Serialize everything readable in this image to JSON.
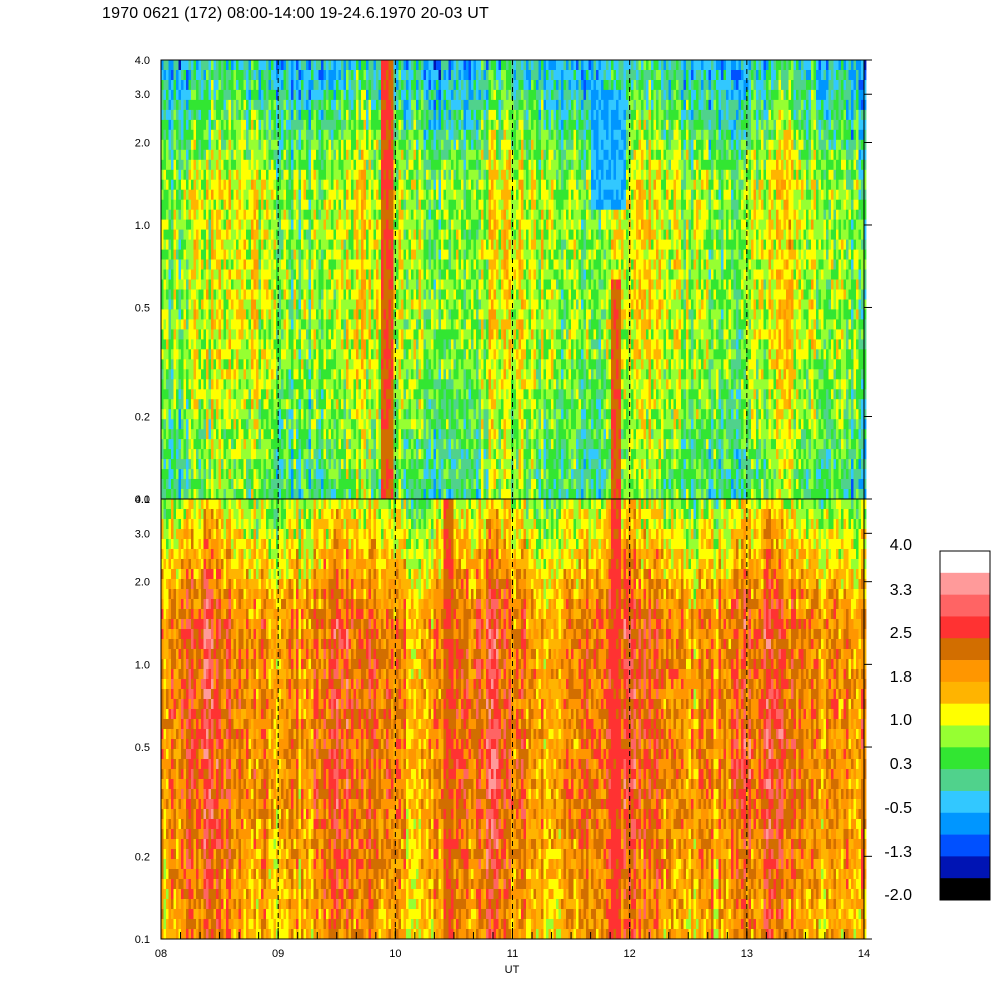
{
  "title": "1970 0621 (172) 08:00-14:00 19-24.6.1970  20-03 UT",
  "chart_data": [
    {
      "type": "heatmap",
      "panel": "upper",
      "y_scale": "log",
      "ylim": [
        0.1,
        4.0
      ],
      "y_ticks": [
        "0.1",
        "0.2",
        "0.5",
        "1.0",
        "2.0",
        "3.0",
        "4.0"
      ],
      "x_ticks": [
        "08",
        "09",
        "10",
        "11",
        "12",
        "13",
        "14"
      ],
      "xlim": [
        8,
        14
      ],
      "grid": "dashed vertical lines at each hour",
      "dominant_levels": {
        "low_freq": 0.3,
        "mid_freq": 0.9,
        "high_freq": -0.3
      },
      "notable_features": [
        {
          "x": 9.92,
          "level": 2.5,
          "note": "narrow vertical red band"
        },
        {
          "x": 11.87,
          "level": 2.5,
          "note": "vertical red band low frequencies"
        },
        {
          "x": 11.8,
          "level": -0.5,
          "note": "cyan/blue patch 1.5-3.0"
        }
      ]
    },
    {
      "type": "heatmap",
      "panel": "lower",
      "y_scale": "log",
      "ylim": [
        0.1,
        4.0
      ],
      "y_ticks": [
        "0.1",
        "0.2",
        "0.5",
        "1.0",
        "2.0",
        "3.0",
        "4.0"
      ],
      "x_ticks": [
        "08",
        "09",
        "10",
        "11",
        "12",
        "13",
        "14"
      ],
      "xlim": [
        8,
        14
      ],
      "xlabel": "UT",
      "grid": "dashed vertical lines at each hour",
      "dominant_levels": {
        "low_freq": 1.8,
        "mid_freq": 2.2,
        "high_freq": 0.9
      },
      "notable_features": [
        {
          "x": 11.87,
          "level": 2.6,
          "note": "vertical red band"
        },
        {
          "x": 10.45,
          "level": 2.5,
          "note": "red streak near 0.5"
        }
      ]
    }
  ],
  "colorbar": {
    "labels": [
      "4.0",
      "3.3",
      "2.5",
      "1.8",
      "1.0",
      "0.3",
      "-0.5",
      "-1.3",
      "-2.0"
    ],
    "colors": [
      "#ffffff",
      "#ff9a9a",
      "#ff6464",
      "#ff3232",
      "#d26e00",
      "#ff9600",
      "#ffb400",
      "#ffff00",
      "#96ff32",
      "#32e632",
      "#50d28c",
      "#32c8ff",
      "#0096ff",
      "#0050ff",
      "#0014b4",
      "#000000"
    ]
  }
}
